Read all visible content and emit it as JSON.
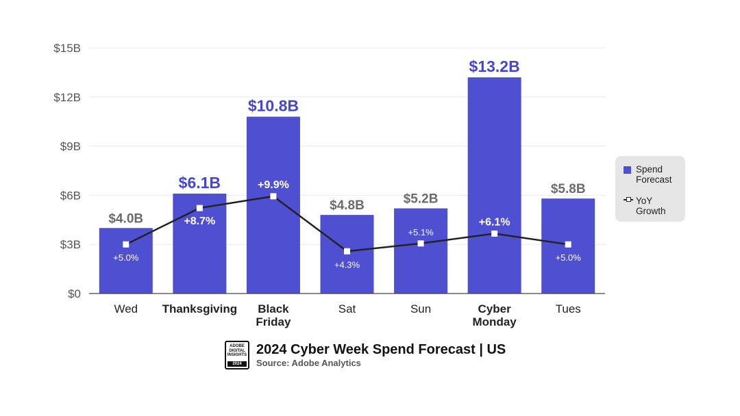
{
  "chart_data": {
    "type": "bar",
    "title": "2024 Cyber Week Spend Forecast | US",
    "source": "Source: Adobe Analytics",
    "categories": [
      "Wed",
      "Thanksgiving",
      "Black Friday",
      "Sat",
      "Sun",
      "Cyber Monday",
      "Tues"
    ],
    "category_lines": [
      [
        "Wed"
      ],
      [
        "Thanksgiving"
      ],
      [
        "Black",
        "Friday"
      ],
      [
        "Sat"
      ],
      [
        "Sun"
      ],
      [
        "Cyber",
        "Monday"
      ],
      [
        "Tues"
      ]
    ],
    "highlighted": [
      false,
      true,
      true,
      false,
      false,
      true,
      false
    ],
    "series": [
      {
        "name": "Spend Forecast",
        "type": "bar",
        "values": [
          4.0,
          6.1,
          10.8,
          4.8,
          5.2,
          13.2,
          5.8
        ],
        "labels": [
          "$4.0B",
          "$6.1B",
          "$10.8B",
          "$4.8B",
          "$5.2B",
          "$13.2B",
          "$5.8B"
        ]
      },
      {
        "name": "YoY Growth",
        "type": "line",
        "values": [
          5.0,
          8.7,
          9.9,
          4.3,
          5.1,
          6.1,
          5.0
        ],
        "labels": [
          "+5.0%",
          "+8.7%",
          "+9.9%",
          "+4.3%",
          "+5.1%",
          "+6.1%",
          "+5.0%"
        ]
      }
    ],
    "yaxis": {
      "ylim": [
        0,
        15
      ],
      "ticks": [
        0,
        3,
        6,
        9,
        12,
        15
      ],
      "tick_labels": [
        "$0",
        "$3B",
        "$6B",
        "$9B",
        "$12B",
        "$15B"
      ]
    },
    "line_scale": {
      "ylim_percent": [
        0,
        25
      ]
    },
    "grid": true,
    "legend": {
      "position": "right",
      "items": [
        {
          "line1": "Spend",
          "line2": "Forecast"
        },
        {
          "line1": "YoY",
          "line2": "Growth"
        }
      ]
    },
    "badge": {
      "text": [
        "ADOBE",
        "DIGITAL",
        "INSIGHTS"
      ],
      "year": "2024"
    },
    "colors": {
      "bar": "#4f4fd1",
      "highlight_label": "#4646d3",
      "label": "#6b6b6b",
      "line": "#222222"
    }
  }
}
